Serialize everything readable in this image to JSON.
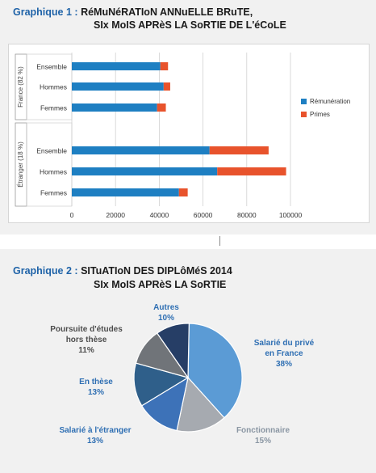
{
  "colors": {
    "remuneration": "#1e7fc2",
    "primes": "#e8532c",
    "title_prefix": "#1f63a8",
    "pie_label": "#2f6fb3",
    "pie_label_light": "#8a96a3"
  },
  "chart1": {
    "prefix": "Graphique 1 :",
    "title_line1": "RéMuNéRATIoN ANNuELLE BRuTE,",
    "title_line2": "SIx MoIS APRèS LA SoRTIE DE L'éCoLE"
  },
  "chart2": {
    "prefix": "Graphique 2 :",
    "title_line1": "SITuATIoN DES DIPLôMéS 2014",
    "title_line2": "SIx MoIS APRèS LA SoRTIE"
  },
  "chart_data": [
    {
      "type": "bar",
      "orientation": "horizontal",
      "stacked": true,
      "groups": [
        {
          "label": "France (82 %)",
          "categories": [
            "Ensemble",
            "Hommes",
            "Femmes"
          ]
        },
        {
          "label": "Étranger (18 %)",
          "categories": [
            "Ensemble",
            "Hommes",
            "Femmes"
          ]
        }
      ],
      "categories": [
        "Ensemble",
        "Hommes",
        "Femmes",
        "Ensemble",
        "Hommes",
        "Femmes"
      ],
      "series": [
        {
          "name": "Rémunération",
          "values": [
            40500,
            42000,
            39000,
            63000,
            66500,
            49000
          ]
        },
        {
          "name": "Primes",
          "values": [
            3500,
            3000,
            4000,
            27000,
            31500,
            4000
          ]
        }
      ],
      "xlim": [
        0,
        100000
      ],
      "xticks": [
        "0",
        "20000",
        "40000",
        "60000",
        "80000",
        "100000"
      ],
      "legend_position": "right",
      "grid": true
    },
    {
      "type": "pie",
      "slices": [
        {
          "label": "Salarié du privé en France",
          "lines": [
            "Salarié du privé",
            "en France"
          ],
          "pct": "38%",
          "value": 38,
          "color": "#5b9bd5"
        },
        {
          "label": "Fonctionnaire",
          "lines": [
            "Fonctionnaire"
          ],
          "pct": "15%",
          "value": 15,
          "color": "#a6aab0"
        },
        {
          "label": "Salarié à l'étranger",
          "lines": [
            "Salarié à l'étranger"
          ],
          "pct": "13%",
          "value": 13,
          "color": "#3d72b8"
        },
        {
          "label": "En thèse",
          "lines": [
            "En thèse"
          ],
          "pct": "13%",
          "value": 13,
          "color": "#2f5f8a"
        },
        {
          "label": "Poursuite d'études hors thèse",
          "lines": [
            "Poursuite d'études",
            "hors thèse"
          ],
          "pct": "11%",
          "value": 11,
          "color": "#707479"
        },
        {
          "label": "Autres",
          "lines": [
            "Autres"
          ],
          "pct": "10%",
          "value": 10,
          "color": "#263e66"
        }
      ]
    }
  ]
}
